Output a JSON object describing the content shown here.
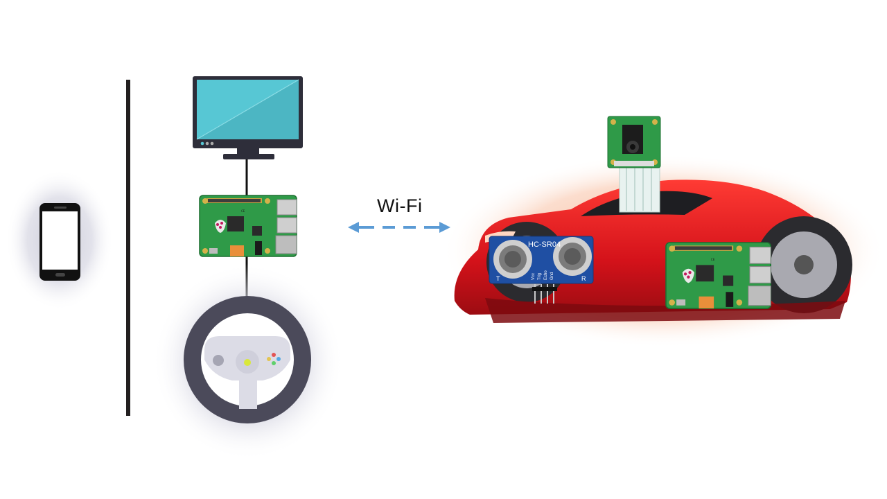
{
  "link": {
    "label": "Wi-Fi"
  },
  "sensor": {
    "model": "HC-SR04",
    "pins": [
      "Vcc",
      "Trig",
      "Echo",
      "Gnd"
    ],
    "side_left": "T",
    "side_right": "R"
  },
  "colors": {
    "divider": "#231f20",
    "arrow": "#5b9bd5",
    "car_body": "#e0161c",
    "car_glow": "#f8b99a",
    "pcb": "#2f9a48",
    "screen": "#57c7d4",
    "wheel": "#4b4a5a"
  }
}
